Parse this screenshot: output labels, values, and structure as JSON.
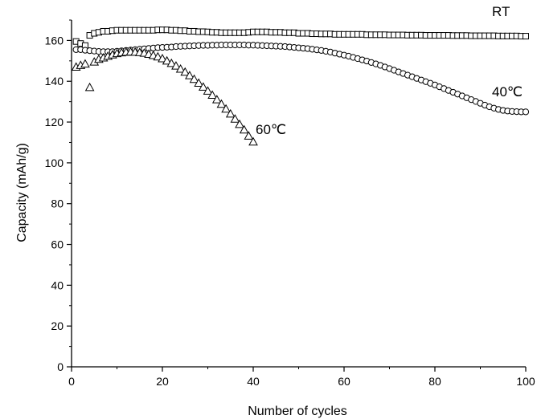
{
  "chart_data": {
    "type": "scatter",
    "title": "",
    "xlabel": "Number of cycles",
    "ylabel": "Capacity (mAh/g)",
    "xlim": [
      0,
      100
    ],
    "ylim": [
      0,
      170
    ],
    "xticks": [
      0,
      20,
      40,
      60,
      80,
      100
    ],
    "yticks": [
      0,
      20,
      40,
      60,
      80,
      100,
      120,
      140,
      160
    ],
    "grid": false,
    "legend": "none",
    "series": [
      {
        "name": "RT",
        "marker": "square",
        "x": [
          1,
          2,
          3,
          4,
          5,
          6,
          7,
          8,
          9,
          10,
          11,
          12,
          13,
          14,
          15,
          16,
          17,
          18,
          19,
          20,
          21,
          22,
          23,
          24,
          25,
          26,
          27,
          28,
          29,
          30,
          31,
          32,
          33,
          34,
          35,
          36,
          37,
          38,
          39,
          40,
          41,
          42,
          43,
          44,
          45,
          46,
          47,
          48,
          49,
          50,
          51,
          52,
          53,
          54,
          55,
          56,
          57,
          58,
          59,
          60,
          61,
          62,
          63,
          64,
          65,
          66,
          67,
          68,
          69,
          70,
          71,
          72,
          73,
          74,
          75,
          76,
          77,
          78,
          79,
          80,
          81,
          82,
          83,
          84,
          85,
          86,
          87,
          88,
          89,
          90,
          91,
          92,
          93,
          94,
          95,
          96,
          97,
          98,
          99,
          100
        ],
        "y": [
          159.5,
          158.5,
          157.5,
          162.5,
          163.5,
          164,
          164.5,
          164.5,
          164.8,
          165,
          165,
          165,
          165,
          165,
          165,
          165,
          165,
          165,
          165.2,
          165.2,
          165.2,
          165,
          165,
          164.8,
          164.8,
          164.5,
          164.5,
          164.3,
          164.3,
          164.2,
          164,
          164,
          163.8,
          163.8,
          163.8,
          163.8,
          163.8,
          163.8,
          164,
          164.2,
          164.2,
          164.2,
          164.2,
          164,
          164,
          164,
          163.8,
          163.8,
          163.8,
          163.5,
          163.5,
          163.5,
          163.3,
          163.3,
          163.2,
          163.2,
          163.2,
          163,
          163,
          163,
          163,
          163,
          163,
          163,
          162.8,
          162.8,
          162.8,
          162.8,
          162.8,
          162.7,
          162.7,
          162.7,
          162.7,
          162.6,
          162.6,
          162.6,
          162.6,
          162.5,
          162.5,
          162.5,
          162.5,
          162.5,
          162.5,
          162.4,
          162.4,
          162.4,
          162.4,
          162.3,
          162.3,
          162.3,
          162.3,
          162.3,
          162.3,
          162.2,
          162.2,
          162.2,
          162.2,
          162.2,
          162.1,
          162.1
        ]
      },
      {
        "name": "40℃",
        "marker": "circle",
        "x": [
          1,
          2,
          3,
          4,
          5,
          6,
          7,
          8,
          9,
          10,
          11,
          12,
          13,
          14,
          15,
          16,
          17,
          18,
          19,
          20,
          21,
          22,
          23,
          24,
          25,
          26,
          27,
          28,
          29,
          30,
          31,
          32,
          33,
          34,
          35,
          36,
          37,
          38,
          39,
          40,
          41,
          42,
          43,
          44,
          45,
          46,
          47,
          48,
          49,
          50,
          51,
          52,
          53,
          54,
          55,
          56,
          57,
          58,
          59,
          60,
          61,
          62,
          63,
          64,
          65,
          66,
          67,
          68,
          69,
          70,
          71,
          72,
          73,
          74,
          75,
          76,
          77,
          78,
          79,
          80,
          81,
          82,
          83,
          84,
          85,
          86,
          87,
          88,
          89,
          90,
          91,
          92,
          93,
          94,
          95,
          96,
          97,
          98,
          99,
          100
        ],
        "y": [
          155.5,
          155.5,
          155.2,
          155,
          154.8,
          154.6,
          154.5,
          154.5,
          154.5,
          154.7,
          154.9,
          155.1,
          155.3,
          155.5,
          155.7,
          155.9,
          156.1,
          156.3,
          156.5,
          156.6,
          156.7,
          156.8,
          157,
          157.1,
          157.2,
          157.3,
          157.4,
          157.5,
          157.6,
          157.6,
          157.7,
          157.7,
          157.8,
          157.8,
          157.8,
          157.8,
          157.8,
          157.8,
          157.7,
          157.7,
          157.6,
          157.5,
          157.4,
          157.3,
          157.2,
          157.1,
          157,
          156.8,
          156.6,
          156.4,
          156.2,
          156,
          155.7,
          155.4,
          155.1,
          154.7,
          154.3,
          153.8,
          153.3,
          152.8,
          152.3,
          151.7,
          151.1,
          150.5,
          149.9,
          149.2,
          148.5,
          147.8,
          147,
          146.2,
          145.4,
          144.6,
          143.8,
          143,
          142.2,
          141.4,
          140.6,
          139.8,
          139,
          138.2,
          137.3,
          136.4,
          135.5,
          134.6,
          133.7,
          132.8,
          131.9,
          131,
          130.1,
          129.2,
          128.3,
          127.5,
          126.8,
          126.2,
          125.7,
          125.4,
          125.2,
          125.1,
          125,
          125
        ]
      },
      {
        "name": "60℃",
        "marker": "triangle",
        "x": [
          1,
          2,
          3,
          4,
          5,
          6,
          7,
          8,
          9,
          10,
          11,
          12,
          13,
          14,
          15,
          16,
          17,
          18,
          19,
          20,
          21,
          22,
          23,
          24,
          25,
          26,
          27,
          28,
          29,
          30,
          31,
          32,
          33,
          34,
          35,
          36,
          37,
          38,
          39,
          40
        ],
        "y": [
          147,
          147.8,
          148.5,
          137,
          149.5,
          150.8,
          151.5,
          152.3,
          153,
          153.6,
          154,
          154.3,
          154.4,
          154.3,
          154.1,
          153.8,
          153.3,
          152.7,
          152,
          151.1,
          150,
          148.8,
          147.5,
          146,
          144.5,
          142.8,
          141,
          139.1,
          137.2,
          135.2,
          133.2,
          131,
          128.8,
          126.4,
          124,
          121.5,
          118.9,
          116.2,
          113.2,
          110.3
        ]
      }
    ],
    "annotations": [
      {
        "text": "RT",
        "series": "RT"
      },
      {
        "text": "40℃",
        "series": "40℃"
      },
      {
        "text": "60℃",
        "series": "60℃"
      }
    ]
  }
}
